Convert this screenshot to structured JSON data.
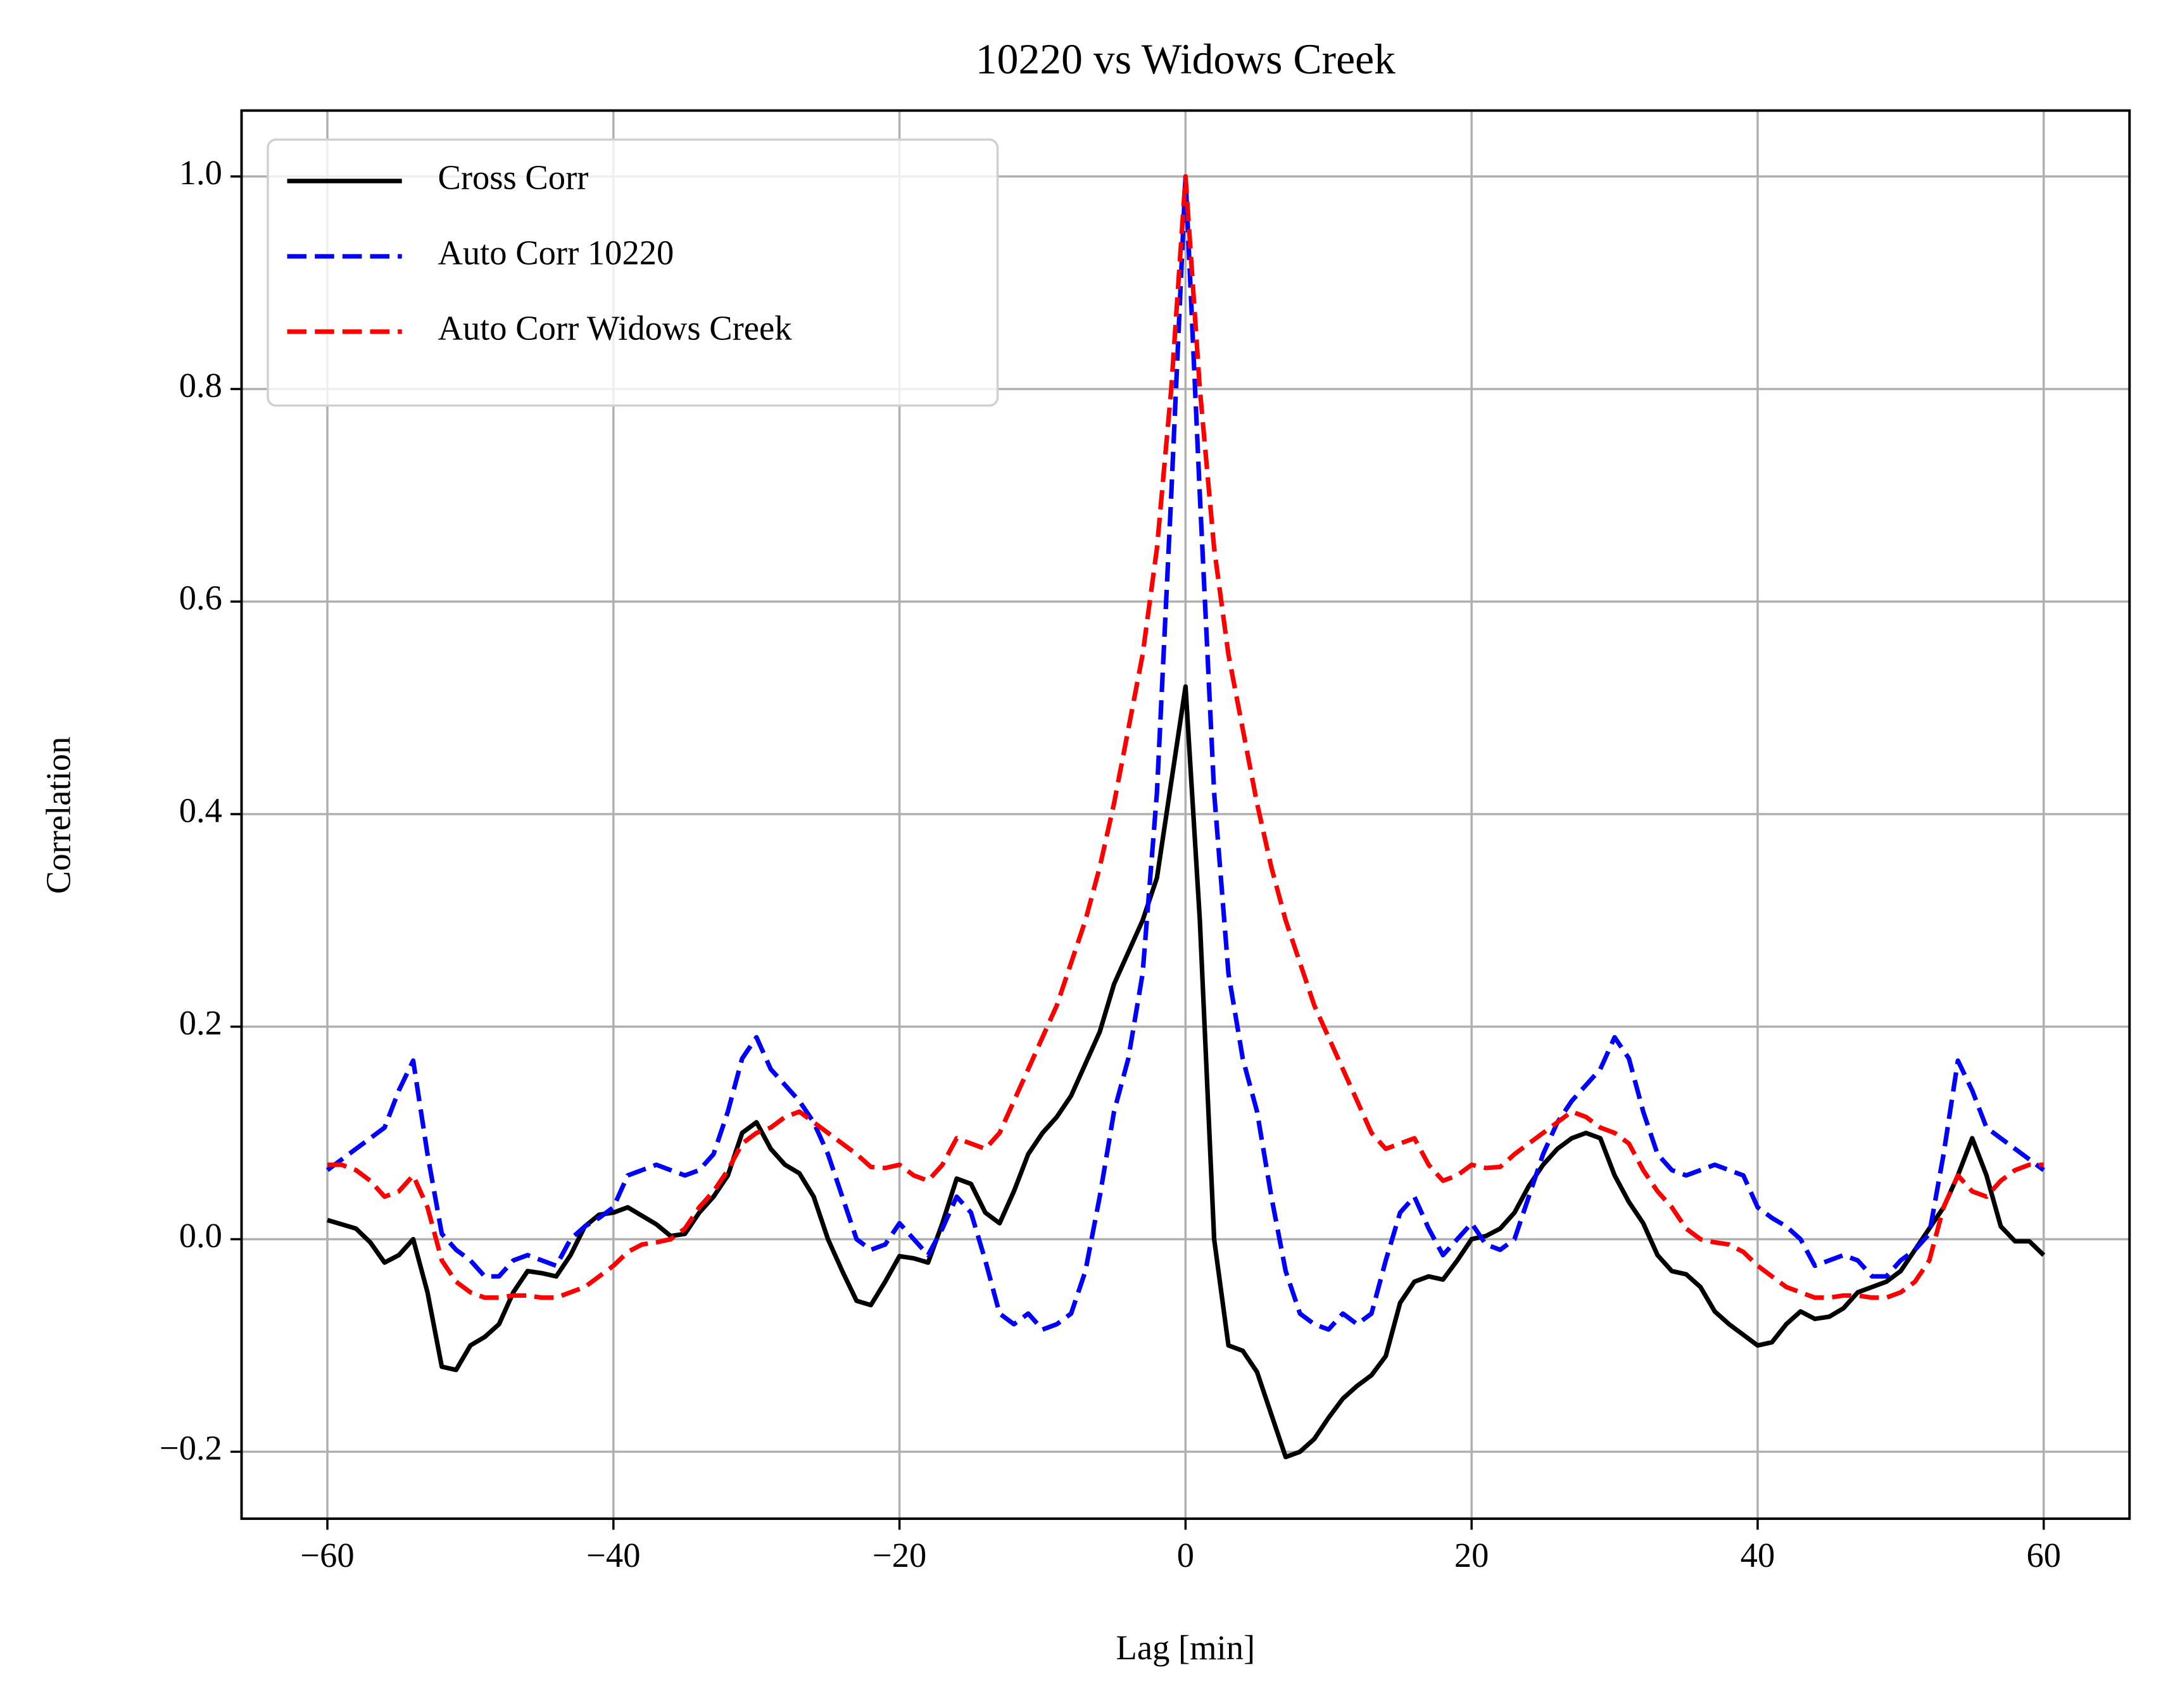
{
  "chart_data": {
    "type": "line",
    "title": "10220 vs Widows Creek",
    "xlabel": "Lag [min]",
    "ylabel": "Correlation",
    "x": [
      -60,
      -59,
      -58,
      -57,
      -56,
      -55,
      -54,
      -53,
      -52,
      -51,
      -50,
      -49,
      -48,
      -47,
      -46,
      -45,
      -44,
      -43,
      -42,
      -41,
      -40,
      -39,
      -38,
      -37,
      -36,
      -35,
      -34,
      -33,
      -32,
      -31,
      -30,
      -29,
      -28,
      -27,
      -26,
      -25,
      -24,
      -23,
      -22,
      -21,
      -20,
      -19,
      -18,
      -17,
      -16,
      -15,
      -14,
      -13,
      -12,
      -11,
      -10,
      -9,
      -8,
      -7,
      -6,
      -5,
      -4,
      -3,
      -2,
      -1,
      0,
      1,
      2,
      3,
      4,
      5,
      6,
      7,
      8,
      9,
      10,
      11,
      12,
      13,
      14,
      15,
      16,
      17,
      18,
      19,
      20,
      21,
      22,
      23,
      24,
      25,
      26,
      27,
      28,
      29,
      30,
      31,
      32,
      33,
      34,
      35,
      36,
      37,
      38,
      39,
      40,
      41,
      42,
      43,
      44,
      45,
      46,
      47,
      48,
      49,
      50,
      51,
      52,
      53,
      54,
      55,
      56,
      57,
      58,
      59,
      60
    ],
    "series": [
      {
        "name": "Cross Corr",
        "color": "#000000",
        "linestyle": "solid",
        "values": [
          0.018,
          0.014,
          0.01,
          -0.003,
          -0.022,
          -0.015,
          0.0,
          -0.05,
          -0.12,
          -0.123,
          -0.1,
          -0.092,
          -0.08,
          -0.05,
          -0.03,
          -0.032,
          -0.035,
          -0.015,
          0.012,
          0.023,
          0.025,
          0.03,
          0.022,
          0.014,
          0.003,
          0.005,
          0.025,
          0.04,
          0.06,
          0.1,
          0.11,
          0.085,
          0.07,
          0.062,
          0.04,
          0.0,
          -0.03,
          -0.058,
          -0.062,
          -0.04,
          -0.016,
          -0.018,
          -0.022,
          0.015,
          0.057,
          0.052,
          0.025,
          0.015,
          0.045,
          0.08,
          0.1,
          0.115,
          0.135,
          0.165,
          0.195,
          0.24,
          0.27,
          0.3,
          0.34,
          0.43,
          0.52,
          0.3,
          0.0,
          -0.1,
          -0.105,
          -0.125,
          -0.165,
          -0.205,
          -0.2,
          -0.188,
          -0.168,
          -0.15,
          -0.138,
          -0.128,
          -0.11,
          -0.06,
          -0.04,
          -0.035,
          -0.038,
          -0.02,
          0.0,
          0.003,
          0.01,
          0.025,
          0.05,
          0.07,
          0.085,
          0.095,
          0.1,
          0.095,
          0.06,
          0.035,
          0.015,
          -0.015,
          -0.03,
          -0.033,
          -0.045,
          -0.068,
          -0.08,
          -0.09,
          -0.1,
          -0.097,
          -0.08,
          -0.068,
          -0.075,
          -0.073,
          -0.065,
          -0.05,
          -0.045,
          -0.04,
          -0.03,
          -0.01,
          0.01,
          0.03,
          0.06,
          0.095,
          0.06,
          0.012,
          -0.002,
          -0.002,
          -0.015
        ]
      },
      {
        "name": "Auto Corr 10220",
        "color": "#0000ff",
        "linestyle": "dashed",
        "values": [
          0.065,
          0.075,
          0.085,
          0.095,
          0.105,
          0.14,
          0.168,
          0.08,
          0.005,
          -0.01,
          -0.02,
          -0.035,
          -0.035,
          -0.02,
          -0.015,
          -0.02,
          -0.025,
          0.0,
          0.012,
          0.02,
          0.03,
          0.06,
          0.065,
          0.07,
          0.065,
          0.06,
          0.065,
          0.08,
          0.12,
          0.17,
          0.19,
          0.16,
          0.145,
          0.13,
          0.11,
          0.08,
          0.04,
          0.0,
          -0.01,
          -0.005,
          0.015,
          0.0,
          -0.015,
          0.01,
          0.04,
          0.025,
          -0.02,
          -0.07,
          -0.08,
          -0.07,
          -0.085,
          -0.08,
          -0.07,
          -0.03,
          0.04,
          0.12,
          0.17,
          0.25,
          0.42,
          0.7,
          1.0,
          0.7,
          0.42,
          0.25,
          0.17,
          0.12,
          0.04,
          -0.03,
          -0.07,
          -0.08,
          -0.085,
          -0.07,
          -0.08,
          -0.07,
          -0.02,
          0.025,
          0.04,
          0.01,
          -0.015,
          0.0,
          0.015,
          -0.005,
          -0.01,
          0.0,
          0.04,
          0.08,
          0.11,
          0.13,
          0.145,
          0.16,
          0.19,
          0.17,
          0.12,
          0.08,
          0.065,
          0.06,
          0.065,
          0.07,
          0.065,
          0.06,
          0.03,
          0.02,
          0.012,
          0.0,
          -0.025,
          -0.02,
          -0.015,
          -0.02,
          -0.035,
          -0.035,
          -0.02,
          -0.01,
          0.005,
          0.08,
          0.168,
          0.14,
          0.105,
          0.095,
          0.085,
          0.075,
          0.065
        ]
      },
      {
        "name": "Auto Corr Widows Creek",
        "color": "#ff0000",
        "linestyle": "dashed",
        "values": [
          0.07,
          0.07,
          0.065,
          0.055,
          0.04,
          0.045,
          0.06,
          0.03,
          -0.02,
          -0.04,
          -0.05,
          -0.055,
          -0.055,
          -0.053,
          -0.053,
          -0.055,
          -0.055,
          -0.05,
          -0.045,
          -0.035,
          -0.025,
          -0.012,
          -0.005,
          -0.003,
          0.0,
          0.01,
          0.03,
          0.045,
          0.065,
          0.09,
          0.1,
          0.105,
          0.115,
          0.12,
          0.11,
          0.1,
          0.09,
          0.08,
          0.068,
          0.067,
          0.07,
          0.06,
          0.055,
          0.07,
          0.095,
          0.09,
          0.085,
          0.1,
          0.13,
          0.16,
          0.19,
          0.22,
          0.26,
          0.3,
          0.35,
          0.41,
          0.48,
          0.55,
          0.65,
          0.8,
          1.0,
          0.8,
          0.65,
          0.55,
          0.48,
          0.41,
          0.35,
          0.3,
          0.26,
          0.22,
          0.19,
          0.16,
          0.13,
          0.1,
          0.085,
          0.09,
          0.095,
          0.07,
          0.055,
          0.06,
          0.07,
          0.067,
          0.068,
          0.08,
          0.09,
          0.1,
          0.11,
          0.12,
          0.115,
          0.105,
          0.1,
          0.09,
          0.065,
          0.045,
          0.03,
          0.01,
          0.0,
          -0.003,
          -0.005,
          -0.012,
          -0.025,
          -0.035,
          -0.045,
          -0.05,
          -0.055,
          -0.055,
          -0.053,
          -0.053,
          -0.055,
          -0.055,
          -0.05,
          -0.04,
          -0.02,
          0.03,
          0.06,
          0.045,
          0.04,
          0.055,
          0.065,
          0.07,
          0.07
        ]
      }
    ],
    "xlim": [
      -66,
      66
    ],
    "xticks": [
      {
        "value": -60,
        "label": "−60"
      },
      {
        "value": -40,
        "label": "−40"
      },
      {
        "value": -20,
        "label": "−20"
      },
      0,
      20,
      40,
      60
    ],
    "ylim": [
      -0.263,
      1.062
    ],
    "yticks": [
      {
        "value": -0.2,
        "label": "−0.2"
      },
      {
        "value": 0,
        "label": "0.0"
      },
      0.2,
      0.4,
      0.6,
      0.8,
      {
        "value": 1,
        "label": "1.0"
      }
    ],
    "grid": true,
    "legend": "upper left"
  }
}
